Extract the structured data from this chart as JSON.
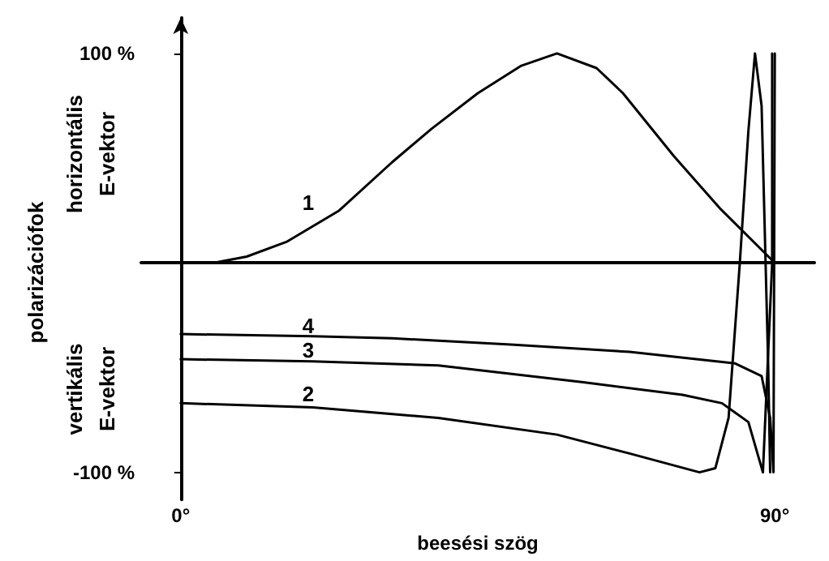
{
  "chart_data": {
    "type": "line",
    "xlabel": "beesési szög",
    "ylabel": "polarizációfok",
    "annotations": [
      "horizontális E-vektor",
      "vertikális E-vektor",
      "1",
      "4",
      "3",
      "2"
    ],
    "series": [
      {
        "color": "#000000",
        "x": [
          5,
          10,
          16,
          24,
          32,
          38,
          45,
          51.5,
          57,
          63,
          67,
          74.7,
          81.7,
          90
        ],
        "values": [
          0,
          3,
          10,
          25,
          48,
          64,
          81,
          94,
          100,
          93,
          81,
          51,
          26,
          0
        ]
      },
      {
        "color": "#000000",
        "x": [
          0,
          20,
          39,
          57,
          68,
          78.6,
          81,
          83,
          84.7,
          86,
          87,
          88,
          89,
          89.3
        ],
        "values": [
          -67,
          -69,
          -74,
          -82,
          -91,
          -100,
          -98,
          -74,
          0,
          63,
          100,
          75,
          -49,
          -100
        ]
      },
      {
        "color": "#000000",
        "x": [
          0,
          20,
          39,
          61,
          76,
          82,
          86,
          88.2,
          89.6,
          89.6
        ],
        "values": [
          -46,
          -47,
          -49,
          -57,
          -63,
          -67,
          -76,
          -100,
          0,
          100
        ]
      },
      {
        "color": "#000000",
        "x": [
          0,
          20,
          32,
          50,
          68,
          84,
          88,
          89.3,
          89.8,
          90
        ],
        "values": [
          -34,
          -35,
          -36,
          -39,
          -42.5,
          -48,
          -54,
          -74,
          -100,
          100
        ]
      }
    ],
    "xlim": [
      -6,
      96
    ],
    "xticks": [
      {
        "value": 0,
        "label": "0°"
      },
      {
        "value": 90,
        "label": "90°"
      }
    ],
    "ylim": [
      -113,
      117
    ],
    "yticks": [
      {
        "value": -100,
        "label": "-100 %"
      },
      {
        "value": 100,
        "label": "100 %"
      }
    ],
    "grid": false,
    "marker": "none",
    "line_style": "solid"
  }
}
